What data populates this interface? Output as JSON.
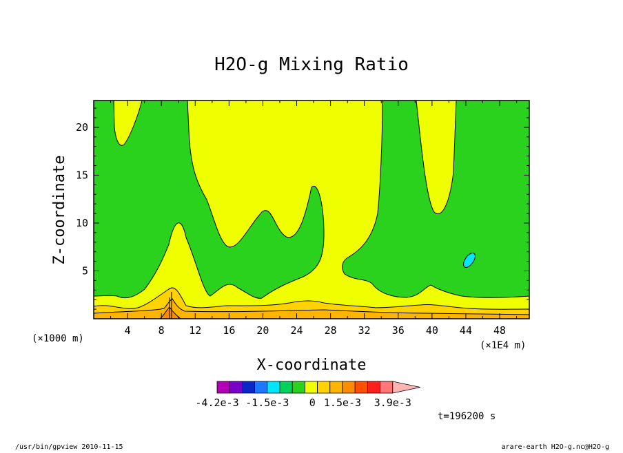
{
  "chart_data": {
    "type": "heatmap",
    "title": "H2O-g Mixing Ratio",
    "xlabel": "X-coordinate",
    "ylabel": "Z-coordinate",
    "x_scale_note": "(×1000 m)",
    "x_unit_note": "(×1E4 m)",
    "x_ticks": [
      4,
      8,
      12,
      16,
      20,
      24,
      28,
      32,
      36,
      40,
      44,
      48
    ],
    "y_ticks": [
      5,
      10,
      15,
      20
    ],
    "xlim": [
      0,
      51.5
    ],
    "ylim": [
      0,
      22.8
    ],
    "grid": false,
    "colorbar": {
      "colors": [
        "#b400b4",
        "#7800c8",
        "#0a28c8",
        "#1e78ff",
        "#00e6ff",
        "#00d25a",
        "#2ad21e",
        "#f0ff00",
        "#ffd200",
        "#ffb400",
        "#ff8c00",
        "#ff5000",
        "#ff1e1e",
        "#ff7878",
        "#ffb4b4"
      ],
      "labels": [
        "-4.2e-3",
        "-1.5e-3",
        "0",
        "1.5e-3",
        "3.9e-3"
      ]
    },
    "regions": {
      "background": "#f0ff00",
      "green": "#2ad21e",
      "cyan": "#00e6ff",
      "orange_light": "#ffd200",
      "orange": "#ffb400",
      "orange_dark": "#ff8c00"
    }
  },
  "time_label": "t=196200 s",
  "footer": {
    "left": "/usr/bin/gpview  2010-11-15",
    "right": "arare-earth_H2O-g.nc@H2O-g"
  }
}
